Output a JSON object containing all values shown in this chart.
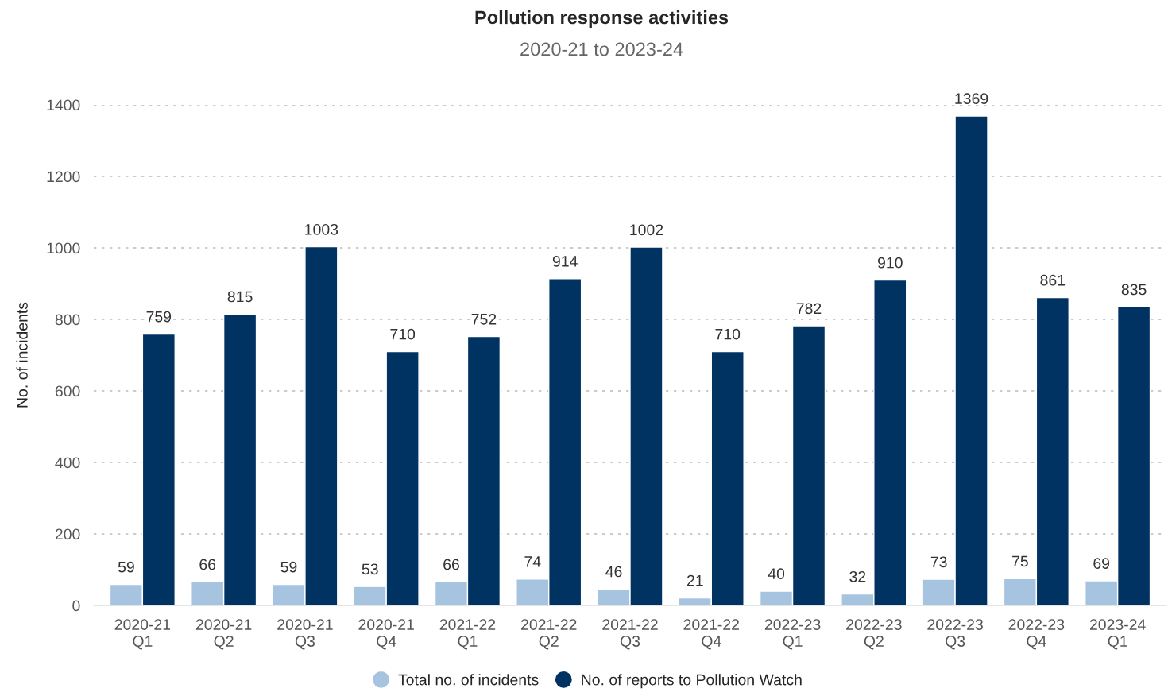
{
  "chart_data": {
    "type": "bar",
    "title": "Pollution response activities",
    "subtitle": "2020-21 to 2023-24",
    "ylabel": "No. of incidents",
    "categories": [
      "2020-21\nQ1",
      "2020-21\nQ2",
      "2020-21\nQ3",
      "2020-21\nQ4",
      "2021-22\nQ1",
      "2021-22\nQ2",
      "2021-22\nQ3",
      "2021-22\nQ4",
      "2022-23\nQ1",
      "2022-23\nQ2",
      "2022-23\nQ3",
      "2022-23\nQ4",
      "2023-24\nQ1"
    ],
    "series": [
      {
        "name": "Total no. of incidents",
        "color": "#a6c4e0",
        "values": [
          59,
          66,
          59,
          53,
          66,
          74,
          46,
          21,
          40,
          32,
          73,
          75,
          69
        ]
      },
      {
        "name": "No. of reports to Pollution Watch",
        "color": "#003262",
        "values": [
          759,
          815,
          1003,
          710,
          752,
          914,
          1002,
          710,
          782,
          910,
          1369,
          861,
          835
        ]
      }
    ],
    "ylim": [
      0,
      1400
    ],
    "yticks": [
      0,
      200,
      400,
      600,
      800,
      1000,
      1200,
      1400
    ],
    "grid": "y",
    "legend": "bottom",
    "data_labels": true
  }
}
